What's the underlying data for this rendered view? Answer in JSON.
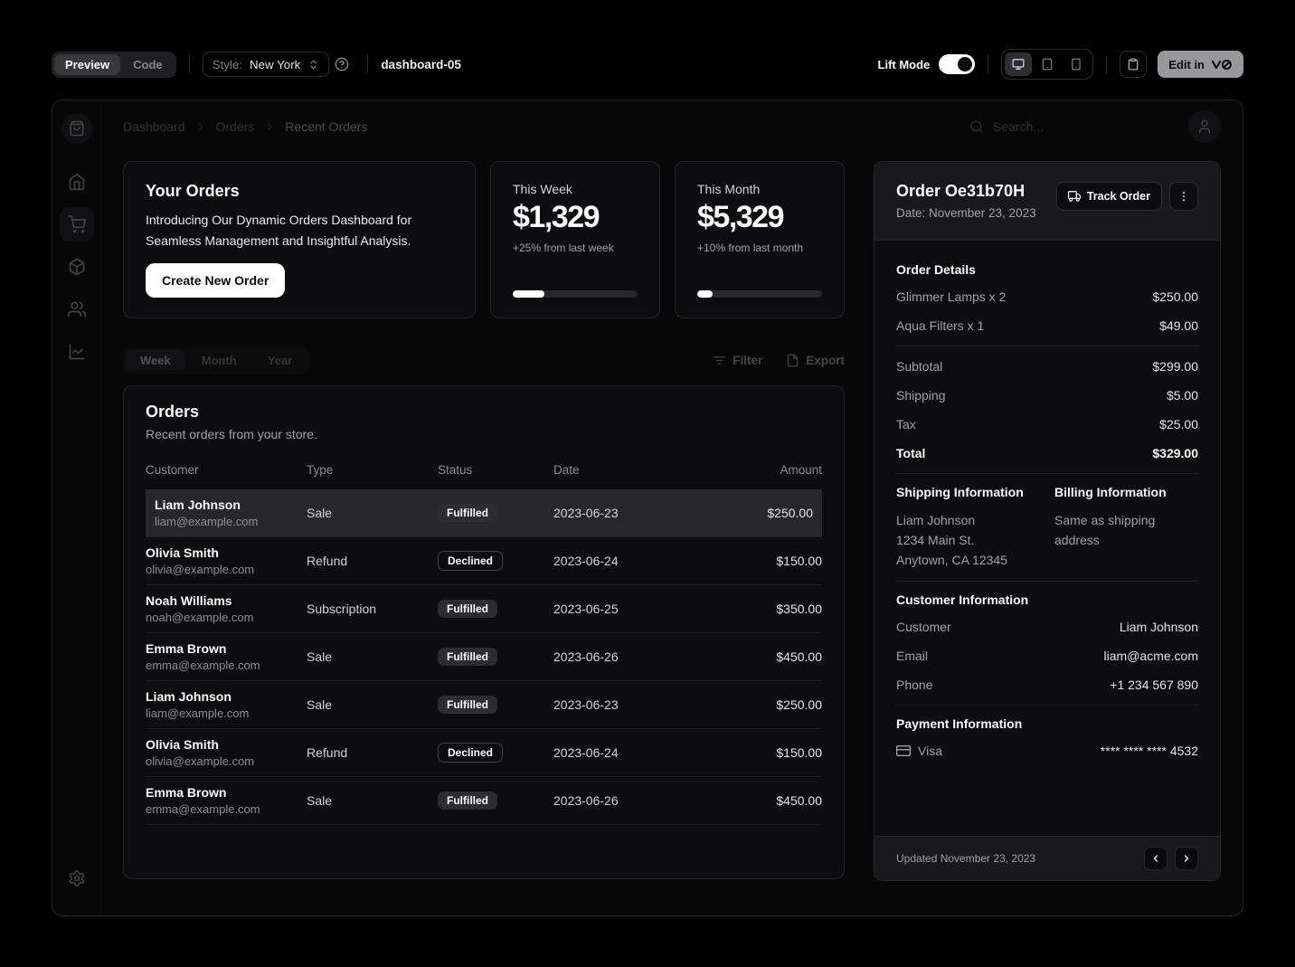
{
  "toolbar": {
    "preview_tab": "Preview",
    "code_tab": "Code",
    "style_label": "Style:",
    "style_value": "New York",
    "project_name": "dashboard-05",
    "lift_mode_label": "Lift Mode",
    "edit_button_label": "Edit in",
    "edit_button_logo": "v0",
    "icons": [
      "chevrons-up-down-icon",
      "circle-help-icon",
      "desktop-icon",
      "tablet-icon",
      "smartphone-icon",
      "clipboard-icon"
    ]
  },
  "sidebar": {
    "logo_icon": "shopping-bag-icon",
    "items": [
      {
        "icon": "home-icon",
        "active": false
      },
      {
        "icon": "shopping-cart-icon",
        "active": true
      },
      {
        "icon": "package-icon",
        "active": false
      },
      {
        "icon": "users-icon",
        "active": false
      },
      {
        "icon": "line-chart-icon",
        "active": false
      }
    ],
    "settings_icon": "settings-icon"
  },
  "header": {
    "breadcrumb": [
      "Dashboard",
      "Orders",
      "Recent Orders"
    ],
    "search_placeholder": "Search...",
    "search_icon": "search-icon",
    "avatar_icon": "user-icon"
  },
  "promo": {
    "title": "Your Orders",
    "description": "Introducing Our Dynamic Orders Dashboard for Seamless Management and Insightful Analysis.",
    "button_label": "Create New Order"
  },
  "stats": [
    {
      "label": "This Week",
      "value": "$1,329",
      "delta": "+25% from last week",
      "progress": 25
    },
    {
      "label": "This Month",
      "value": "$5,329",
      "delta": "+10% from last month",
      "progress": 12
    }
  ],
  "period_tabs": {
    "tabs": [
      "Week",
      "Month",
      "Year"
    ],
    "active": "Week",
    "filter_label": "Filter",
    "export_label": "Export",
    "filter_icon": "list-filter-icon",
    "export_icon": "file-icon"
  },
  "orders": {
    "title": "Orders",
    "subtitle": "Recent orders from your store.",
    "columns": [
      "Customer",
      "Type",
      "Status",
      "Date",
      "Amount"
    ],
    "rows": [
      {
        "customer_name": "Liam Johnson",
        "customer_email": "liam@example.com",
        "type": "Sale",
        "status": "Fulfilled",
        "badge_variant": "secondary",
        "date": "2023-06-23",
        "amount": "$250.00",
        "selected": true
      },
      {
        "customer_name": "Olivia Smith",
        "customer_email": "olivia@example.com",
        "type": "Refund",
        "status": "Declined",
        "badge_variant": "outline",
        "date": "2023-06-24",
        "amount": "$150.00",
        "selected": false
      },
      {
        "customer_name": "Noah Williams",
        "customer_email": "noah@example.com",
        "type": "Subscription",
        "status": "Fulfilled",
        "badge_variant": "secondary",
        "date": "2023-06-25",
        "amount": "$350.00",
        "selected": false
      },
      {
        "customer_name": "Emma Brown",
        "customer_email": "emma@example.com",
        "type": "Sale",
        "status": "Fulfilled",
        "badge_variant": "secondary",
        "date": "2023-06-26",
        "amount": "$450.00",
        "selected": false
      },
      {
        "customer_name": "Liam Johnson",
        "customer_email": "liam@example.com",
        "type": "Sale",
        "status": "Fulfilled",
        "badge_variant": "secondary",
        "date": "2023-06-23",
        "amount": "$250.00",
        "selected": false
      },
      {
        "customer_name": "Olivia Smith",
        "customer_email": "olivia@example.com",
        "type": "Refund",
        "status": "Declined",
        "badge_variant": "outline",
        "date": "2023-06-24",
        "amount": "$150.00",
        "selected": false
      },
      {
        "customer_name": "Emma Brown",
        "customer_email": "emma@example.com",
        "type": "Sale",
        "status": "Fulfilled",
        "badge_variant": "secondary",
        "date": "2023-06-26",
        "amount": "$450.00",
        "selected": false
      }
    ]
  },
  "order_panel": {
    "title": "Order Oe31b70H",
    "date": "Date: November 23, 2023",
    "track_button_label": "Track Order",
    "track_icon": "truck-icon",
    "menu_icon": "ellipsis-vertical-icon",
    "details": {
      "heading": "Order Details",
      "items": [
        {
          "label": "Glimmer Lamps x 2",
          "value": "$250.00"
        },
        {
          "label": "Aqua Filters x 1",
          "value": "$49.00"
        }
      ],
      "summary": [
        {
          "label": "Subtotal",
          "value": "$299.00"
        },
        {
          "label": "Shipping",
          "value": "$5.00"
        },
        {
          "label": "Tax",
          "value": "$25.00"
        },
        {
          "label": "Total",
          "value": "$329.00"
        }
      ]
    },
    "shipping": {
      "heading": "Shipping Information",
      "lines": [
        "Liam Johnson",
        "1234 Main St.",
        "Anytown, CA 12345"
      ]
    },
    "billing": {
      "heading": "Billing Information",
      "note": "Same as shipping address"
    },
    "customer": {
      "heading": "Customer Information",
      "rows": [
        {
          "label": "Customer",
          "value": "Liam Johnson"
        },
        {
          "label": "Email",
          "value": "liam@acme.com"
        },
        {
          "label": "Phone",
          "value": "+1 234 567 890"
        }
      ]
    },
    "payment": {
      "heading": "Payment Information",
      "method": "Visa",
      "method_icon": "credit-card-icon",
      "number": "**** **** **** 4532"
    },
    "footer": {
      "updated": "Updated November 23, 2023",
      "prev_icon": "chevron-left-icon",
      "next_icon": "chevron-right-icon"
    }
  }
}
